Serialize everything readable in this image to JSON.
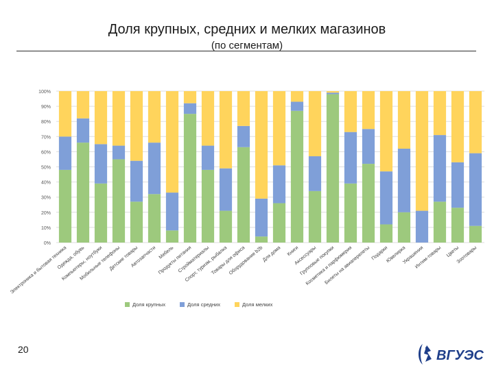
{
  "slide": {
    "title": "Доля крупных, средних и мелких магазинов",
    "subtitle": "(по сегментам)",
    "page_number": "20",
    "logo_text": "ВГУЭС"
  },
  "chart_data": {
    "type": "bar",
    "stacked": true,
    "percent": true,
    "categories": [
      "Электроника и бытовая техника",
      "Одежда, обувь",
      "Компьютеры, ноутбуки",
      "Мобильные телефоны",
      "Детские товары",
      "Автозапчасти",
      "Мебель",
      "Продукты питания",
      "Стройматериалы",
      "Спорт, туризм, рыбалка",
      "Товары для офиса",
      "Оборудование b2b",
      "Для дома",
      "Книги",
      "Аксессуары",
      "Групповые покупки",
      "Косметика и парфюмерия",
      "Билеты на авиаперелеты",
      "Подарки",
      "Ювелирка",
      "Украшения",
      "Интим-товары",
      "Цветы",
      "Зоотовары"
    ],
    "series": [
      {
        "name": "Доля крупных",
        "color": "#9dc97d",
        "values": [
          48,
          66,
          39,
          55,
          27,
          32,
          8,
          85,
          48,
          21,
          63,
          4,
          26,
          87,
          34,
          98,
          39,
          52,
          12,
          20,
          0,
          27,
          23,
          11
        ]
      },
      {
        "name": "Доля средних",
        "color": "#7f9fd8",
        "values": [
          22,
          16,
          26,
          9,
          27,
          34,
          25,
          7,
          16,
          28,
          14,
          25,
          25,
          6,
          23,
          1,
          34,
          23,
          35,
          42,
          21,
          44,
          30,
          48
        ]
      },
      {
        "name": "Доля мелких",
        "color": "#ffd45c",
        "values": [
          30,
          18,
          35,
          36,
          46,
          34,
          67,
          8,
          36,
          51,
          23,
          71,
          49,
          7,
          43,
          1,
          27,
          25,
          53,
          38,
          79,
          29,
          47,
          41
        ]
      }
    ],
    "yticks": [
      "0%",
      "10%",
      "20%",
      "30%",
      "40%",
      "50%",
      "60%",
      "70%",
      "80%",
      "90%",
      "100%"
    ],
    "ylim": [
      0,
      100
    ],
    "grid": true,
    "legend": "bottom"
  }
}
